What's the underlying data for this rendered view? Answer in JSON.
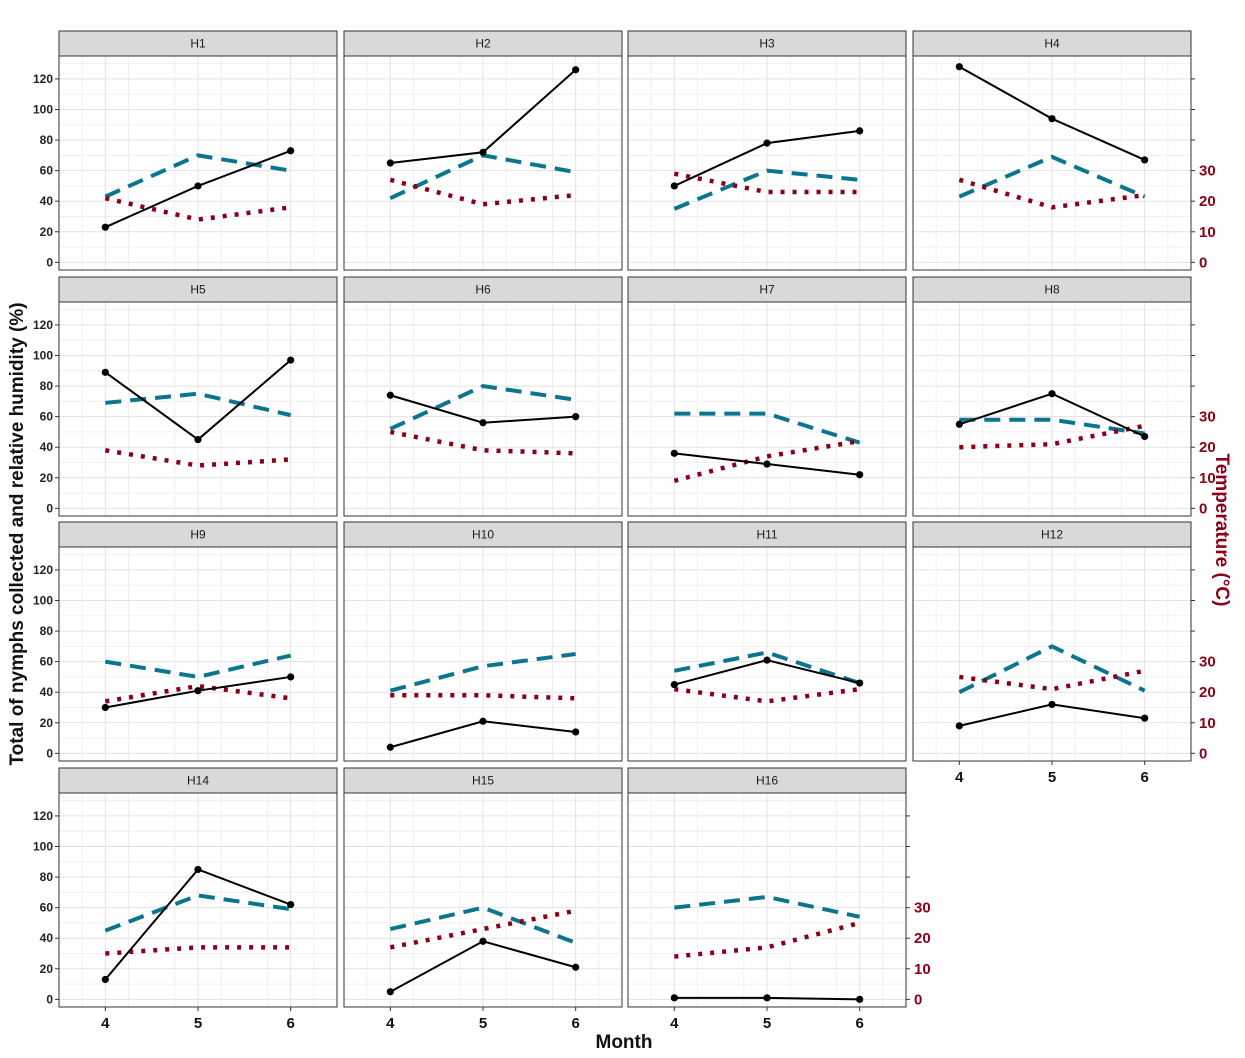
{
  "chart_data": {
    "type": "line",
    "layout": "faceted small multiples, 4 columns x 4 rows",
    "xlabel": "Month",
    "ylabel": "Total of nymphs collected and relative humidity (%)",
    "ylabel_right": "Temperature (°C)",
    "x": [
      4,
      5,
      6
    ],
    "x_ticks": [
      "4",
      "5",
      "6"
    ],
    "ylim": [
      -5,
      135
    ],
    "y_ticks": [
      "0",
      "20",
      "40",
      "60",
      "80",
      "100",
      "120"
    ],
    "ylim_right": [
      -2.5,
      67.5
    ],
    "y_ticks_right": [
      "0",
      "10",
      "20",
      "30"
    ],
    "grid": true,
    "legend": "none",
    "colors": {
      "nymphs": "#000000",
      "humidity": "#0b7590",
      "temperature": "#8b0018"
    },
    "panels": [
      {
        "label": "H1",
        "nymphs": [
          23,
          50,
          73
        ],
        "humidity": [
          43,
          70,
          60
        ],
        "temperature": [
          21,
          14,
          18
        ]
      },
      {
        "label": "H2",
        "nymphs": [
          65,
          72,
          126
        ],
        "humidity": [
          42,
          70,
          59
        ],
        "temperature": [
          27,
          19,
          22
        ]
      },
      {
        "label": "H3",
        "nymphs": [
          50,
          78,
          86
        ],
        "humidity": [
          35,
          60,
          54
        ],
        "temperature": [
          29,
          23,
          23
        ]
      },
      {
        "label": "H4",
        "nymphs": [
          128,
          94,
          67
        ],
        "humidity": [
          43,
          69,
          43
        ],
        "temperature": [
          27,
          18,
          22
        ]
      },
      {
        "label": "H5",
        "nymphs": [
          89,
          45,
          97
        ],
        "humidity": [
          69,
          75,
          61
        ],
        "temperature": [
          19,
          14,
          16
        ]
      },
      {
        "label": "H6",
        "nymphs": [
          74,
          56,
          60
        ],
        "humidity": [
          52,
          80,
          71
        ],
        "temperature": [
          25,
          19,
          18
        ]
      },
      {
        "label": "H7",
        "nymphs": [
          36,
          29,
          22
        ],
        "humidity": [
          62,
          62,
          43
        ],
        "temperature": [
          9,
          17,
          22
        ]
      },
      {
        "label": "H8",
        "nymphs": [
          55,
          75,
          47
        ],
        "humidity": [
          58,
          58,
          49
        ],
        "temperature": [
          20,
          21,
          27
        ]
      },
      {
        "label": "H9",
        "nymphs": [
          30,
          41,
          50
        ],
        "humidity": [
          60,
          50,
          64
        ],
        "temperature": [
          17,
          22,
          18
        ]
      },
      {
        "label": "H10",
        "nymphs": [
          4,
          21,
          14
        ],
        "humidity": [
          41,
          57,
          65
        ],
        "temperature": [
          19,
          19,
          18
        ]
      },
      {
        "label": "H11",
        "nymphs": [
          45,
          61,
          46
        ],
        "humidity": [
          54,
          66,
          46
        ],
        "temperature": [
          21,
          17,
          21
        ]
      },
      {
        "label": "H12",
        "nymphs": [
          18,
          32,
          23
        ],
        "humidity": [
          40,
          70,
          41
        ],
        "temperature": [
          25,
          21,
          27
        ]
      },
      {
        "label": "H14",
        "nymphs": [
          13,
          85,
          62
        ],
        "humidity": [
          45,
          68,
          59
        ],
        "temperature": [
          15,
          17,
          17
        ]
      },
      {
        "label": "H15",
        "nymphs": [
          5,
          38,
          21
        ],
        "humidity": [
          46,
          60,
          37
        ],
        "temperature": [
          17,
          23,
          29
        ]
      },
      {
        "label": "H16",
        "nymphs": [
          1,
          1,
          0
        ],
        "humidity": [
          60,
          67,
          54
        ],
        "temperature": [
          14,
          17,
          25
        ]
      }
    ]
  }
}
